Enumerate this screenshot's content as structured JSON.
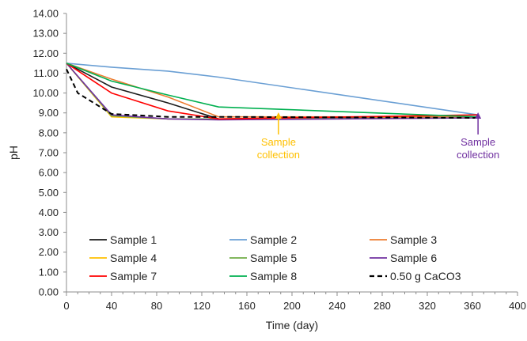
{
  "chart_data": {
    "type": "line",
    "xlabel": "Time (day)",
    "ylabel": "pH",
    "xlim": [
      0,
      400
    ],
    "ylim": [
      0,
      14
    ],
    "x_ticks": [
      "0",
      "40",
      "80",
      "120",
      "160",
      "200",
      "240",
      "280",
      "320",
      "360",
      "400"
    ],
    "y_ticks": [
      "0.00",
      "1.00",
      "2.00",
      "3.00",
      "4.00",
      "5.00",
      "6.00",
      "7.00",
      "8.00",
      "9.00",
      "10.00",
      "11.00",
      "12.00",
      "13.00",
      "14.00"
    ],
    "grid": false,
    "legend_position": "bottom-inside",
    "series": [
      {
        "name": "Sample 1",
        "color": "#1a1a1a",
        "dash": false,
        "x": [
          0,
          40,
          90,
          135,
          365
        ],
        "y": [
          11.5,
          10.3,
          9.5,
          8.7,
          8.8
        ]
      },
      {
        "name": "Sample 2",
        "color": "#6a9fd4",
        "dash": false,
        "x": [
          0,
          40,
          90,
          135,
          365
        ],
        "y": [
          11.5,
          11.3,
          11.1,
          10.8,
          8.9
        ]
      },
      {
        "name": "Sample 3",
        "color": "#ed7d31",
        "dash": false,
        "x": [
          0,
          40,
          90,
          135,
          365
        ],
        "y": [
          11.5,
          10.7,
          9.8,
          8.8,
          8.8
        ]
      },
      {
        "name": "Sample 4",
        "color": "#ffc000",
        "dash": false,
        "x": [
          0,
          40,
          90,
          135,
          365
        ],
        "y": [
          11.5,
          8.8,
          8.7,
          8.7,
          8.75
        ]
      },
      {
        "name": "Sample 5",
        "color": "#70ad47",
        "dash": false,
        "x": [
          0,
          40,
          90,
          135,
          365
        ],
        "y": [
          11.5,
          8.85,
          8.7,
          8.7,
          8.75
        ]
      },
      {
        "name": "Sample 6",
        "color": "#7030a0",
        "dash": false,
        "x": [
          0,
          40,
          90,
          135,
          365
        ],
        "y": [
          11.5,
          8.9,
          8.7,
          8.65,
          8.75
        ]
      },
      {
        "name": "Sample 7",
        "color": "#ff0000",
        "dash": false,
        "x": [
          0,
          40,
          90,
          135,
          365
        ],
        "y": [
          11.5,
          10.0,
          9.1,
          8.7,
          8.9
        ]
      },
      {
        "name": "Sample 8",
        "color": "#00b050",
        "dash": false,
        "x": [
          0,
          40,
          90,
          135,
          365
        ],
        "y": [
          11.5,
          10.6,
          9.9,
          9.3,
          8.8
        ]
      },
      {
        "name": "0.50 g CaCO3",
        "color": "#000000",
        "dash": true,
        "x": [
          0,
          10,
          40,
          90,
          135,
          365
        ],
        "y": [
          11.2,
          10.0,
          8.95,
          8.8,
          8.8,
          8.75
        ]
      }
    ],
    "annotations": [
      {
        "text": [
          "Sample",
          "collection"
        ],
        "x": 188,
        "color": "#ffc000"
      },
      {
        "text": [
          "Sample",
          "collection"
        ],
        "x": 365,
        "color": "#7030a0"
      }
    ]
  }
}
